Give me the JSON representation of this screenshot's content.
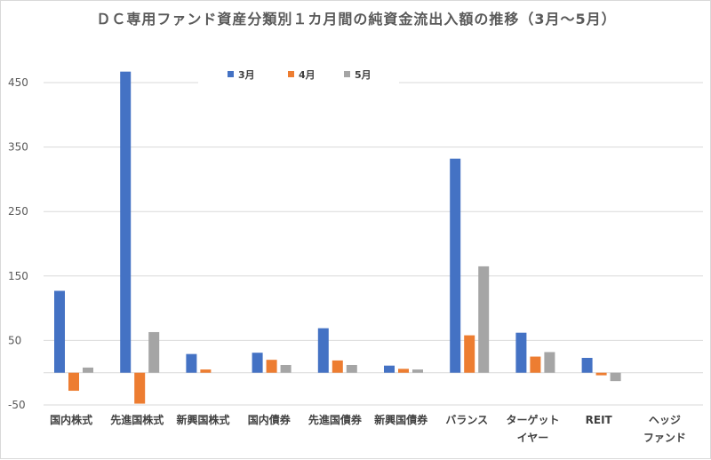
{
  "chart_data": {
    "type": "bar",
    "title": "ＤＣ専用ファンド資産分類別１カ月間の純資金流出入額の推移（3月～5月）",
    "categories": [
      [
        "国内株式"
      ],
      [
        "先進国株式"
      ],
      [
        "新興国株式"
      ],
      [
        "国内債券"
      ],
      [
        "先進国債券"
      ],
      [
        "新興国債券"
      ],
      [
        "バランス"
      ],
      [
        "ターゲット",
        "イヤー"
      ],
      [
        "REIT"
      ],
      [
        "ヘッジ",
        "ファンド"
      ]
    ],
    "series": [
      {
        "name": "3月",
        "color": "#4472C4",
        "values": [
          127,
          467,
          29,
          31,
          69,
          11,
          332,
          62,
          23,
          0
        ]
      },
      {
        "name": "4月",
        "color": "#ED7D31",
        "values": [
          -28,
          -48,
          5,
          20,
          19,
          6,
          58,
          25,
          -4,
          0
        ]
      },
      {
        "name": "5月",
        "color": "#A5A5A5",
        "values": [
          8,
          63,
          0,
          12,
          12,
          5,
          165,
          32,
          -13,
          0
        ]
      }
    ],
    "yticks": [
      -50,
      50,
      150,
      250,
      350,
      450
    ],
    "ylim": [
      -50,
      450
    ],
    "grid": true,
    "legend": "top-center"
  }
}
